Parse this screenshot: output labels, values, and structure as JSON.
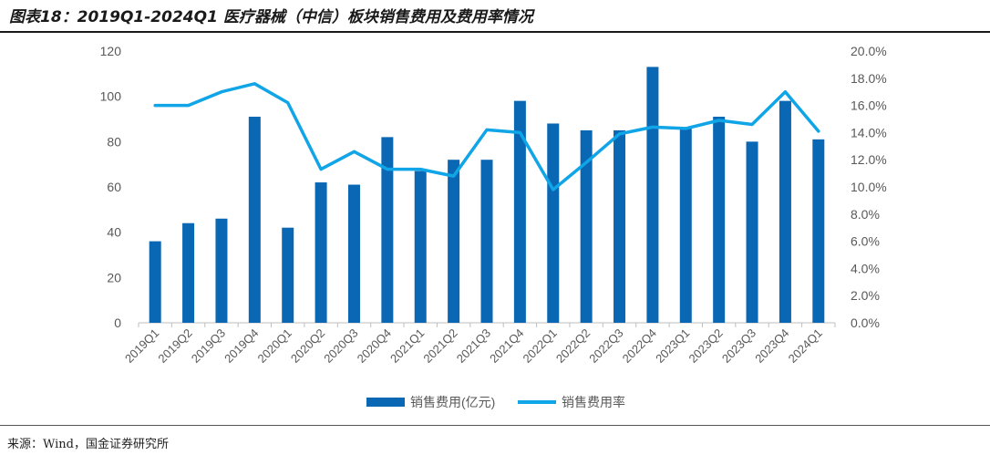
{
  "title": "图表18：2019Q1-2024Q1 医疗器械（中信）板块销售费用及费用率情况",
  "source": "来源：Wind，国金证券研究所",
  "colors": {
    "bar": "#0A67B4",
    "line": "#10A5E6",
    "axis": "#bfbfbf",
    "tick_text": "#595959"
  },
  "chart_data": {
    "type": "bar+line",
    "title": "图表18：2019Q1-2024Q1 医疗器械（中信）板块销售费用及费用率情况",
    "categories": [
      "2019Q1",
      "2019Q2",
      "2019Q3",
      "2019Q4",
      "2020Q1",
      "2020Q2",
      "2020Q3",
      "2020Q4",
      "2021Q1",
      "2021Q2",
      "2021Q3",
      "2021Q4",
      "2022Q1",
      "2022Q2",
      "2022Q3",
      "2022Q4",
      "2023Q1",
      "2023Q2",
      "2023Q3",
      "2023Q4",
      "2024Q1"
    ],
    "series": [
      {
        "name": "销售费用(亿元)",
        "type": "bar",
        "axis": "left",
        "values": [
          36,
          44,
          46,
          91,
          42,
          62,
          61,
          82,
          67,
          72,
          72,
          98,
          88,
          85,
          85,
          113,
          86,
          91,
          80,
          98,
          81
        ]
      },
      {
        "name": "销售费用率",
        "type": "line",
        "axis": "right",
        "values": [
          16.0,
          16.0,
          17.0,
          17.6,
          16.2,
          11.3,
          12.6,
          11.3,
          11.3,
          10.8,
          14.2,
          14.0,
          9.8,
          11.8,
          13.9,
          14.4,
          14.3,
          14.9,
          14.6,
          17.0,
          14.1
        ]
      }
    ],
    "ylim_left": [
      0,
      120
    ],
    "yticks_left": [
      "0",
      "20",
      "40",
      "60",
      "80",
      "100",
      "120"
    ],
    "ylim_right": [
      0,
      20
    ],
    "yticks_right": [
      "0.0%",
      "2.0%",
      "4.0%",
      "6.0%",
      "8.0%",
      "10.0%",
      "12.0%",
      "14.0%",
      "16.0%",
      "18.0%",
      "20.0%"
    ],
    "legend": [
      "销售费用(亿元)",
      "销售费用率"
    ],
    "legend_position": "bottom-center"
  }
}
